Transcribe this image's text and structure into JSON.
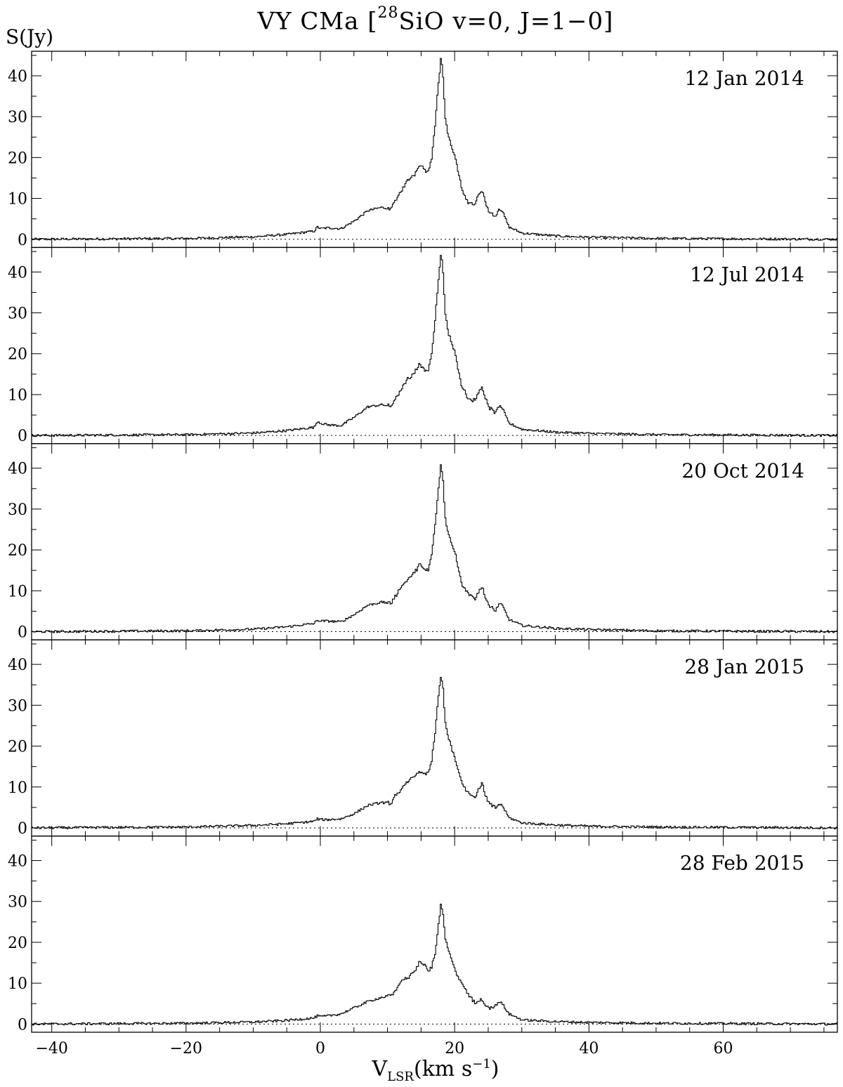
{
  "figure": {
    "title_main": "VY CMa [",
    "title_sup": "28",
    "title_rest": "SiO v=0, J=1−0]",
    "ylabel": "S(Jy)",
    "xlabel_main": "V",
    "xlabel_sub": "LSR",
    "xlabel_unit": "(km s",
    "xlabel_sup": "−1",
    "xlabel_close": ")"
  },
  "chart_data": {
    "type": "line",
    "style": "step",
    "title": "VY CMa [28SiO v=0, J=1−0]",
    "xlabel": "V_LSR(km s^-1)",
    "ylabel": "S(Jy)",
    "xlim": [
      -43,
      77
    ],
    "ylim": [
      -2,
      46
    ],
    "xticks": [
      -40,
      -20,
      0,
      20,
      40,
      60
    ],
    "xtick_labels": [
      "−40",
      "−20",
      "0",
      "20",
      "40",
      "60"
    ],
    "yticks": [
      0,
      10,
      20,
      30,
      40
    ],
    "ytick_labels": [
      "0",
      "10",
      "20",
      "30",
      "40"
    ],
    "baseline": "dotted at 0",
    "grid": false,
    "line_color": "#000000",
    "panels": [
      {
        "label": "12 Jan 2014",
        "x": [
          -43,
          -20,
          -10,
          -5,
          -1,
          -0.5,
          0,
          1,
          3,
          5,
          7,
          9,
          10.5,
          11,
          12,
          13,
          14,
          14.7,
          15.5,
          16,
          16.5,
          17,
          17.5,
          17.9,
          18.2,
          18.5,
          19,
          20,
          21,
          22,
          23,
          23.5,
          24,
          24.5,
          25,
          26,
          26.5,
          27,
          28,
          30,
          35,
          40,
          50,
          77
        ],
        "y": [
          0,
          0.2,
          0.6,
          1.2,
          2.0,
          3.0,
          2.6,
          2.8,
          2.6,
          4.5,
          7,
          7.8,
          7.5,
          9,
          12,
          14.5,
          16,
          18.5,
          17,
          16.5,
          20,
          28,
          38,
          44.5,
          40,
          30,
          25,
          20,
          12,
          9,
          8.5,
          11,
          12,
          9,
          7,
          5.5,
          7.5,
          7,
          3,
          1.5,
          0.8,
          0.5,
          0.2,
          0
        ]
      },
      {
        "label": "12 Jul 2014",
        "x": [
          -43,
          -20,
          -10,
          -5,
          -1,
          -0.5,
          0,
          1,
          3,
          5,
          7,
          9,
          10.5,
          11,
          12,
          13,
          14,
          14.7,
          15.5,
          16,
          16.5,
          17,
          17.5,
          17.9,
          18.2,
          18.5,
          19,
          20,
          21,
          22,
          23,
          23.5,
          24,
          24.5,
          25,
          26,
          26.5,
          27,
          28,
          30,
          35,
          40,
          50,
          77
        ],
        "y": [
          0,
          0.2,
          0.6,
          1.2,
          2.0,
          3.5,
          3.0,
          2.6,
          2.4,
          4.5,
          7,
          7.5,
          7.2,
          8.5,
          11.5,
          14,
          15.5,
          17.5,
          16,
          16,
          20,
          28,
          38,
          44.5,
          40,
          30,
          25,
          20,
          12,
          9,
          8.5,
          11,
          12,
          9,
          7,
          5.5,
          7.2,
          6.8,
          3,
          1.5,
          0.8,
          0.5,
          0.2,
          0
        ]
      },
      {
        "label": "20 Oct 2014",
        "x": [
          -43,
          -20,
          -10,
          -5,
          -1,
          -0.5,
          0,
          1,
          3,
          5,
          7,
          9,
          10.5,
          11,
          12,
          13,
          14,
          14.7,
          15.5,
          16,
          16.5,
          17,
          17.5,
          17.9,
          18.2,
          18.5,
          19,
          20,
          21,
          22,
          23,
          23.5,
          24,
          24.5,
          25,
          26,
          26.5,
          27,
          28,
          30,
          35,
          40,
          50,
          77
        ],
        "y": [
          0,
          0.2,
          0.6,
          1.2,
          2.0,
          2.8,
          2.6,
          2.6,
          2.4,
          4.2,
          6.5,
          7.2,
          7.0,
          8.5,
          11,
          13,
          14.5,
          16.5,
          15,
          15,
          19,
          26,
          35,
          41.5,
          37,
          28,
          24,
          19,
          11.5,
          9,
          8,
          10,
          11,
          8.5,
          6.5,
          5,
          6.8,
          6.5,
          3,
          1.5,
          0.8,
          0.5,
          0.2,
          0
        ]
      },
      {
        "label": "28 Jan 2015",
        "x": [
          -43,
          -20,
          -10,
          -5,
          -1,
          -0.5,
          0,
          1,
          3,
          5,
          7,
          9,
          10.5,
          11,
          12,
          13,
          14,
          14.7,
          15.5,
          16,
          16.5,
          17,
          17.5,
          17.9,
          18.2,
          18.5,
          19,
          20,
          21,
          22,
          23,
          23.5,
          24,
          24.5,
          25,
          26,
          26.5,
          27,
          28,
          30,
          35,
          40,
          50,
          77
        ],
        "y": [
          0,
          0.2,
          0.6,
          1.0,
          1.6,
          2.2,
          2.0,
          2.0,
          2.2,
          3.5,
          5.5,
          6.2,
          6.0,
          7.5,
          9.5,
          11.5,
          12.5,
          13.8,
          13,
          13.5,
          16.5,
          23,
          32,
          37.5,
          34,
          26,
          22,
          17,
          11,
          8.5,
          7.5,
          9.5,
          11,
          8,
          6,
          4.8,
          5.8,
          5.5,
          2.5,
          1.2,
          0.7,
          0.4,
          0.2,
          0
        ]
      },
      {
        "label": "28 Feb 2015",
        "x": [
          -43,
          -20,
          -10,
          -5,
          -1,
          -0.5,
          0,
          1,
          3,
          5,
          7,
          9,
          10.5,
          11,
          12,
          13,
          14,
          14.7,
          15.5,
          16,
          16.5,
          17,
          17.5,
          17.9,
          18.2,
          18.5,
          19,
          20,
          21,
          22,
          23,
          23.5,
          24,
          24.5,
          25,
          26,
          26.5,
          27,
          28,
          30,
          35,
          40,
          50,
          77
        ],
        "y": [
          0,
          0.2,
          0.5,
          0.9,
          1.5,
          2.0,
          1.8,
          2.0,
          2.5,
          4.0,
          5.5,
          6.5,
          7.0,
          8.0,
          10.5,
          11.5,
          13,
          15,
          14.5,
          13,
          14,
          17,
          24,
          29.5,
          27,
          21,
          18,
          13,
          10,
          7,
          5,
          5.5,
          6,
          4.5,
          4,
          4.5,
          5.5,
          5,
          2.5,
          1,
          0.6,
          0.4,
          0.2,
          0
        ]
      }
    ]
  }
}
